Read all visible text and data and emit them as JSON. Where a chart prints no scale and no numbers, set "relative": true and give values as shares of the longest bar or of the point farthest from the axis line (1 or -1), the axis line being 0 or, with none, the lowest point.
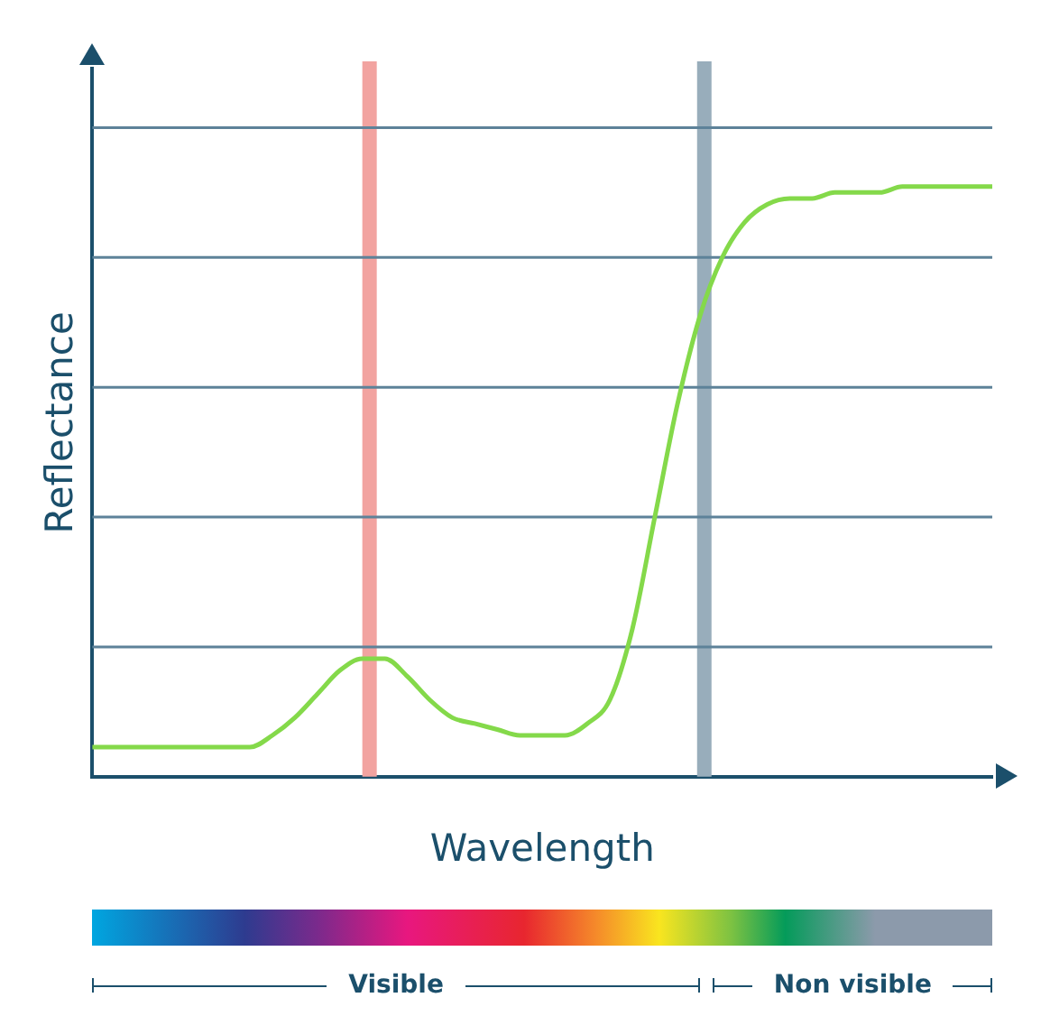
{
  "chart_data": {
    "type": "line",
    "relative": true,
    "xlabel": "Wavelength",
    "ylabel": "Reflectance",
    "categories": [
      null,
      null,
      null,
      null,
      null,
      null,
      null,
      null,
      null,
      null,
      null,
      null,
      null,
      null,
      null,
      null,
      null,
      null,
      null,
      null,
      null,
      null,
      null,
      null,
      null,
      null,
      null,
      null,
      null,
      null,
      null,
      null,
      null,
      null,
      null,
      null,
      null,
      null,
      null,
      null,
      null
    ],
    "series": [
      {
        "color": "#84d94a",
        "values": [
          0.05,
          0.05,
          0.05,
          0.05,
          0.05,
          0.05,
          0.05,
          0.05,
          0.07,
          0.1,
          0.14,
          0.18,
          0.2,
          0.2,
          0.17,
          0.13,
          0.1,
          0.09,
          0.08,
          0.07,
          0.07,
          0.07,
          0.09,
          0.13,
          0.25,
          0.44,
          0.63,
          0.78,
          0.88,
          0.94,
          0.97,
          0.98,
          0.98,
          0.99,
          0.99,
          0.99,
          1,
          1,
          1,
          1,
          1
        ]
      }
    ],
    "ref_lines": [
      {
        "axis": "y",
        "value": 0.22,
        "color": "#5d8299"
      },
      {
        "axis": "y",
        "value": 0.44,
        "color": "#5d8299"
      },
      {
        "axis": "y",
        "value": 0.66,
        "color": "#5d8299"
      },
      {
        "axis": "y",
        "value": 0.88,
        "color": "#5d8299"
      },
      {
        "axis": "y",
        "value": 1.1,
        "color": "#5d8299"
      }
    ],
    "annotations": [
      "Visible",
      "Non visible"
    ],
    "legend": false,
    "marker": "none",
    "line_style": "solid"
  }
}
